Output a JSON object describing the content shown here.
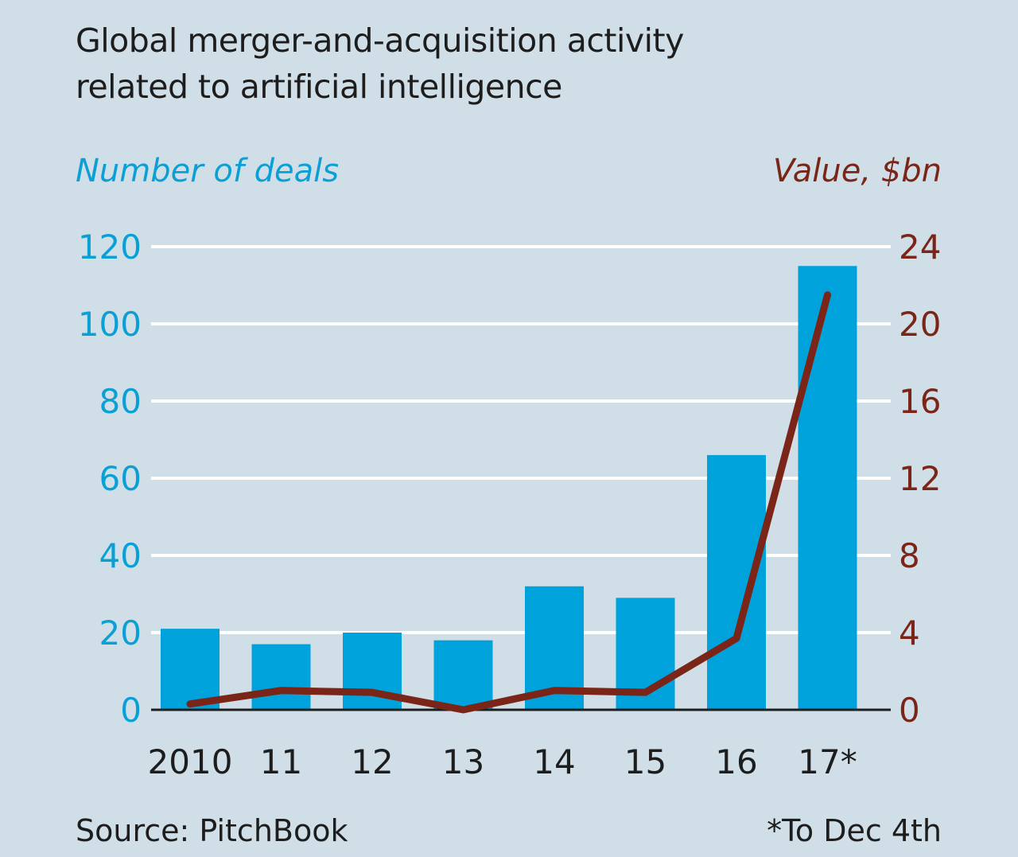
{
  "chart_data": {
    "type": "bar",
    "title": [
      "Global merger-and-acquisition activity",
      "related to artificial intelligence"
    ],
    "categories": [
      "2010",
      "11",
      "12",
      "13",
      "14",
      "15",
      "16",
      "17*"
    ],
    "series": [
      {
        "name": "Number of deals",
        "type": "bar",
        "axis": "left",
        "color": "#00a2dc",
        "values": [
          21,
          17,
          20,
          18,
          32,
          29,
          66,
          115
        ]
      },
      {
        "name": "Value, $bn",
        "type": "line",
        "axis": "right",
        "color": "#7a2518",
        "values": [
          0.3,
          1.0,
          0.9,
          0.0,
          1.0,
          0.9,
          3.7,
          21.5
        ]
      }
    ],
    "y_left": {
      "label": "Number of deals",
      "ylim": [
        0,
        120
      ],
      "ticks": [
        "0",
        "20",
        "40",
        "60",
        "80",
        "100",
        "120"
      ],
      "color": "#0aa0d6"
    },
    "y_right": {
      "label": "Value, $bn",
      "ylim": [
        0,
        24
      ],
      "ticks": [
        "0",
        "4",
        "8",
        "12",
        "16",
        "20",
        "24"
      ],
      "color": "#7a2518"
    },
    "grid": true,
    "source": "Source: PitchBook",
    "note": "*To Dec 4th"
  }
}
